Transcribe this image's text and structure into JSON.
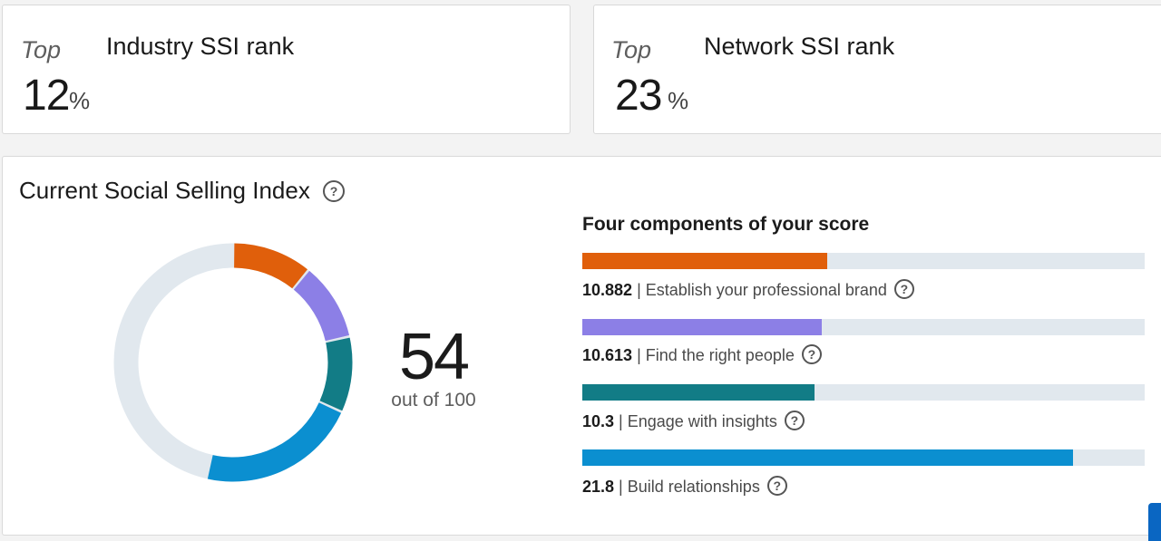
{
  "industry_rank": {
    "prefix": "Top",
    "title": "Industry SSI rank",
    "value": "12",
    "unit": "%"
  },
  "network_rank": {
    "prefix": "Top",
    "title": "Network SSI rank",
    "value": "23",
    "unit": "%"
  },
  "ssi": {
    "title": "Current Social Selling Index",
    "score": "54",
    "score_sub": "out of 100",
    "components_heading": "Four components of your score",
    "components": [
      {
        "value": "10.882",
        "label": "Establish your professional brand",
        "fill_fraction": 0.435,
        "color": "#e05f0b"
      },
      {
        "value": "10.613",
        "label": "Find the right people",
        "fill_fraction": 0.425,
        "color": "#8c7fe6"
      },
      {
        "value": "10.3",
        "label": "Engage with insights",
        "fill_fraction": 0.413,
        "color": "#127c86"
      },
      {
        "value": "21.8",
        "label": "Build relationships",
        "fill_fraction": 0.872,
        "color": "#0b8fd0"
      }
    ],
    "track_color": "#e1e8ee"
  },
  "icons": {
    "help": "question-circle-icon",
    "help_glyph": "?"
  }
}
